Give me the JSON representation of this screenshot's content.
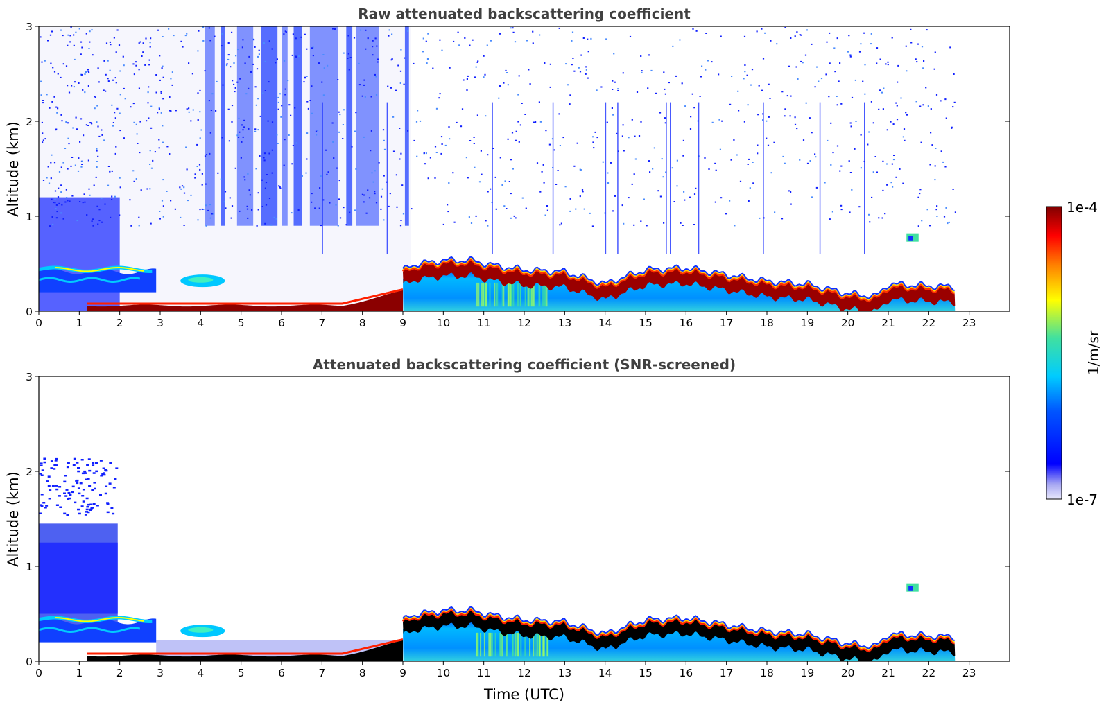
{
  "chart_data": [
    {
      "type": "heatmap",
      "title": "Raw attenuated backscattering coefficient",
      "xlabel": "",
      "ylabel": "Altitude (km)",
      "xlim": [
        0,
        24
      ],
      "ylim": [
        0,
        3
      ],
      "x_ticks": [
        0,
        1,
        2,
        3,
        4,
        5,
        6,
        7,
        8,
        9,
        10,
        11,
        12,
        13,
        14,
        15,
        16,
        17,
        18,
        19,
        20,
        21,
        22,
        23
      ],
      "y_ticks": [
        0,
        1,
        2,
        3
      ],
      "data_extent_hours": [
        0,
        22.65
      ],
      "color_scale": "log",
      "layer_top_km": [
        {
          "t": 0,
          "top": 0.45
        },
        {
          "t": 1,
          "top": 0.45
        },
        {
          "t": 2,
          "top": 0.45
        },
        {
          "t": 2.8,
          "top": 0.4
        },
        {
          "t": 3,
          "top": 0.1
        },
        {
          "t": 4,
          "top": 0.12
        },
        {
          "t": 5,
          "top": 0.15
        },
        {
          "t": 6,
          "top": 0.15
        },
        {
          "t": 7,
          "top": 0.18
        },
        {
          "t": 8,
          "top": 0.22
        },
        {
          "t": 8.7,
          "top": 0.3
        },
        {
          "t": 9.2,
          "top": 0.45
        },
        {
          "t": 10,
          "top": 0.5
        },
        {
          "t": 10.7,
          "top": 0.5
        },
        {
          "t": 11.2,
          "top": 0.45
        },
        {
          "t": 12,
          "top": 0.4
        },
        {
          "t": 13,
          "top": 0.38
        },
        {
          "t": 14,
          "top": 0.25
        },
        {
          "t": 14.3,
          "top": 0.3
        },
        {
          "t": 15,
          "top": 0.4
        },
        {
          "t": 16,
          "top": 0.42
        },
        {
          "t": 17,
          "top": 0.35
        },
        {
          "t": 18,
          "top": 0.28
        },
        {
          "t": 19,
          "top": 0.25
        },
        {
          "t": 20,
          "top": 0.15
        },
        {
          "t": 20.7,
          "top": 0.12
        },
        {
          "t": 21,
          "top": 0.25
        },
        {
          "t": 22.65,
          "top": 0.22
        }
      ]
    },
    {
      "type": "heatmap",
      "title": "Attenuated backscattering coefficient (SNR-screened)",
      "xlabel": "Time (UTC)",
      "ylabel": "Altitude (km)",
      "xlim": [
        0,
        24
      ],
      "ylim": [
        0,
        3
      ],
      "x_ticks": [
        0,
        1,
        2,
        3,
        4,
        5,
        6,
        7,
        8,
        9,
        10,
        11,
        12,
        13,
        14,
        15,
        16,
        17,
        18,
        19,
        20,
        21,
        22,
        23
      ],
      "y_ticks": [
        0,
        1,
        2,
        3
      ],
      "data_extent_hours": [
        0,
        22.65
      ],
      "color_scale": "log"
    }
  ],
  "colorbar": {
    "label": "1/m/sr",
    "max_label": "1e-4",
    "min_label": "1e-7",
    "colormap": "jet"
  },
  "colors": {
    "title": "#404040",
    "low": "#e4e4fa",
    "blue": "#0000ff",
    "cyan": "#00ccff",
    "yellow": "#ffff00",
    "red": "#ff0000",
    "darkred": "#8b0000",
    "black": "#000000"
  }
}
